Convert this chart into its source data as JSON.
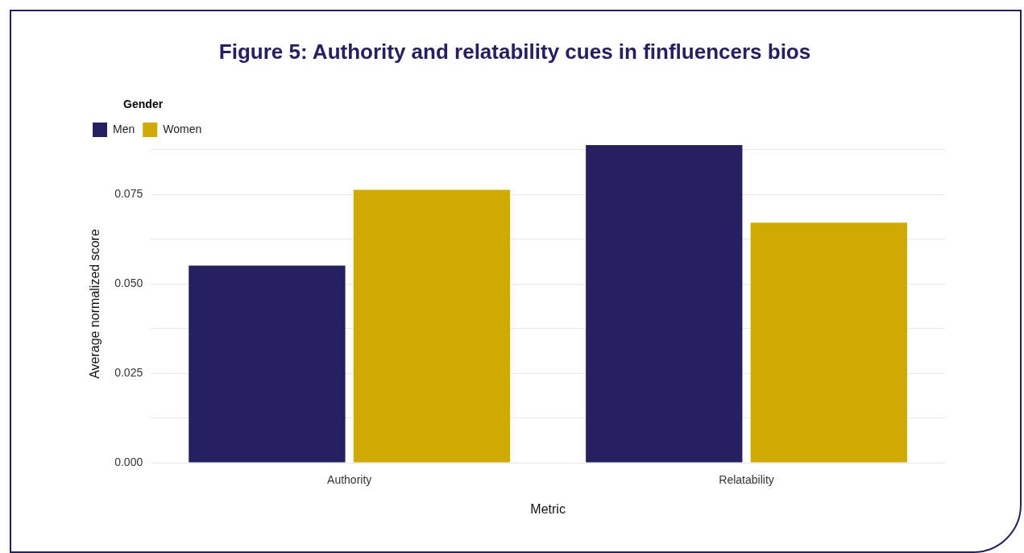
{
  "chart_data": {
    "type": "bar",
    "title": "Figure 5: Authority and relatability cues in finfluencers bios",
    "xlabel": "Metric",
    "ylabel": "Average normalized score",
    "legend_title": "Gender",
    "categories": [
      "Authority",
      "Relatability"
    ],
    "series": [
      {
        "name": "Men",
        "color": "#25205f",
        "values": [
          0.0551,
          0.0888
        ]
      },
      {
        "name": "Women",
        "color": "#cfaa03",
        "values": [
          0.0763,
          0.0671
        ]
      }
    ],
    "ylim": [
      0,
      0.0888
    ],
    "yticks": [
      {
        "value": 0,
        "label": "0.000"
      },
      {
        "value": 0.0125,
        "label": null
      },
      {
        "value": 0.025,
        "label": "0.025"
      },
      {
        "value": 0.0375,
        "label": null
      },
      {
        "value": 0.05,
        "label": "0.050"
      },
      {
        "value": 0.0625,
        "label": null
      },
      {
        "value": 0.075,
        "label": "0.075"
      },
      {
        "value": 0.0875,
        "label": null
      }
    ],
    "grid": "y",
    "legend": "top left"
  }
}
